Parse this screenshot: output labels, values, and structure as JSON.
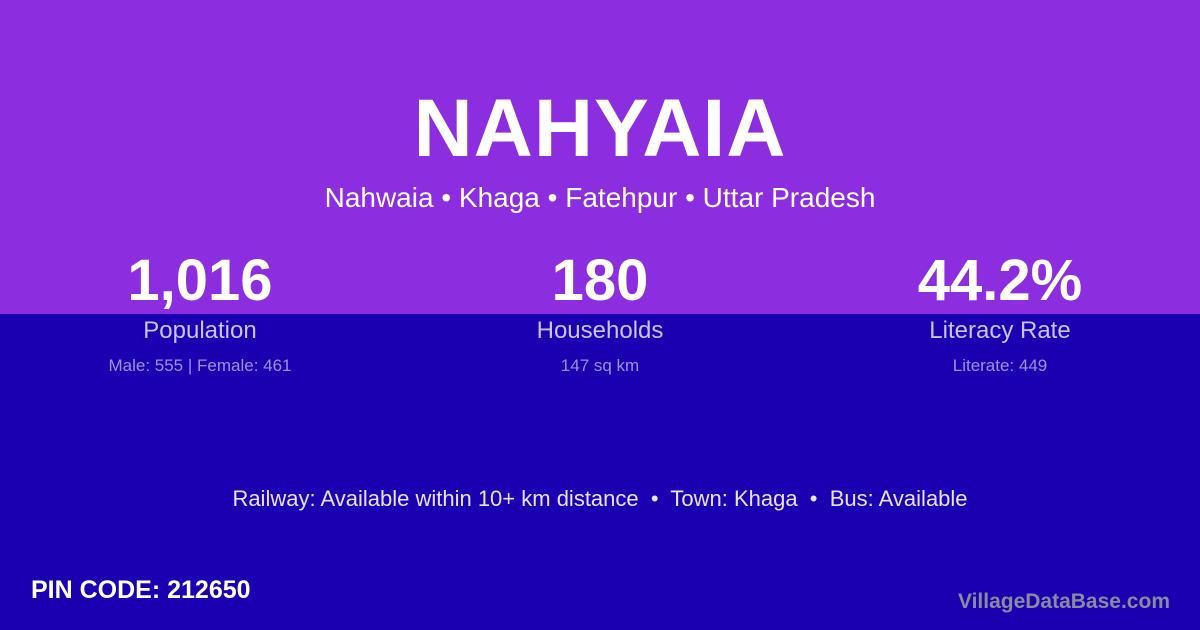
{
  "title": "NAHYAIA",
  "subtitle": "Nahwaia • Khaga • Fatehpur • Uttar Pradesh",
  "stats": [
    {
      "value": "1,016",
      "label": "Population",
      "detail": "Male: 555 | Female: 461"
    },
    {
      "value": "180",
      "label": "Households",
      "detail": "147 sq km"
    },
    {
      "value": "44.2%",
      "label": "Literacy Rate",
      "detail": "Literate: 449"
    }
  ],
  "info": "Railway: Available within 10+ km distance  •  Town: Khaga  •  Bus: Available",
  "pin": "PIN CODE: 212650",
  "brand": "VillageDataBase.com",
  "colors": {
    "top": "#8c2de0",
    "bottom": "#1a00b0"
  }
}
